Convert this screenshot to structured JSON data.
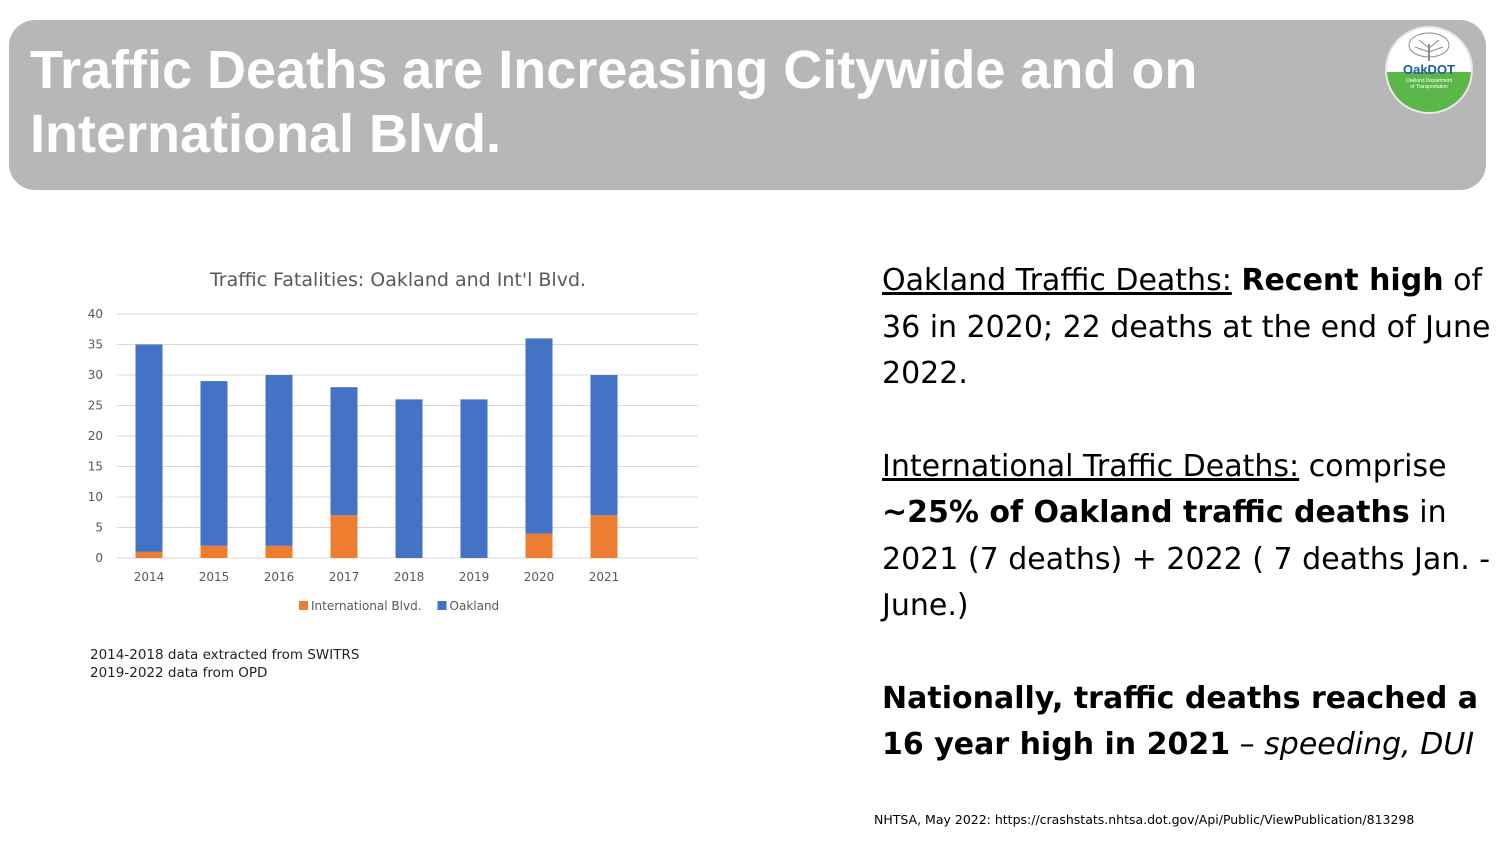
{
  "slide": {
    "title": "Traffic Deaths are Increasing Citywide and on International Blvd.",
    "logo": {
      "name": "OakDOT",
      "line1": "Oakland Department",
      "line2": "of Transportation"
    }
  },
  "chart_data": {
    "type": "bar",
    "stacked": true,
    "title": "Traffic Fatalities:  Oakland and Int'l Blvd.",
    "categories": [
      "2014",
      "2015",
      "2016",
      "2017",
      "2018",
      "2019",
      "2020",
      "2021"
    ],
    "series": [
      {
        "name": "International Blvd.",
        "color": "#ed7d31",
        "values": [
          1,
          2,
          2,
          7,
          0,
          0,
          4,
          7
        ]
      },
      {
        "name": "Oakland",
        "color": "#4472c4",
        "values": [
          34,
          27,
          28,
          21,
          26,
          26,
          32,
          23
        ]
      }
    ],
    "ylim": [
      0,
      40
    ],
    "yticks": [
      0,
      5,
      10,
      15,
      20,
      25,
      30,
      35,
      40
    ],
    "grid": true,
    "legend": "bottom"
  },
  "notes": {
    "source_line1": "2014-2018 data extracted from SWITRS",
    "source_line2": "2019-2022 data from OPD"
  },
  "text": {
    "p1_label": "Oakland Traffic Deaths:",
    "p1_bold": "Recent high",
    "p1_rest": "of 36 in 2020; 22 deaths at the end of June 2022.",
    "p2_label": "International Traffic Deaths:",
    "p2_rest1": "comprise",
    "p2_bold": "~25% of Oakland traffic deaths",
    "p2_rest2": "in 2021 (7 deaths) + 2022 ( 7 deaths Jan. - June.)",
    "p3_bold": "Nationally, traffic deaths reached a 16 year high in 2021",
    "p3_dash": " – ",
    "p3_italic": "speeding, DUI",
    "citation": "NHTSA, May 2022: https://crashstats.nhtsa.dot.gov/Api/Public/ViewPublication/813298"
  }
}
